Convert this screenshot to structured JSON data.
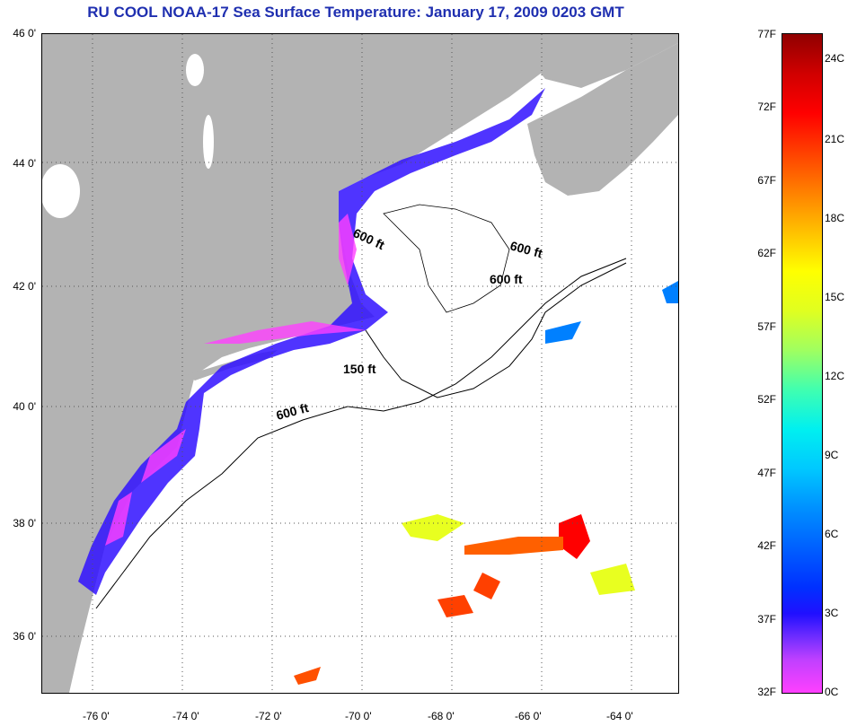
{
  "title": "RU COOL  NOAA-17  Sea Surface Temperature:  January 17, 2009 0203 GMT",
  "lat_labels": [
    "46 0'",
    "44 0'",
    "42 0'",
    "40 0'",
    "38 0'",
    "36 0'"
  ],
  "lon_labels": [
    "-76 0'",
    "-74 0'",
    "-72 0'",
    "-70 0'",
    "-68 0'",
    "-66 0'",
    "-64 0'"
  ],
  "contours": [
    "600 ft",
    "600 ft",
    "600 ft",
    "150 ft",
    "600 ft"
  ],
  "colorbar": {
    "fahrenheit": [
      "77F",
      "72F",
      "67F",
      "62F",
      "57F",
      "52F",
      "47F",
      "42F",
      "37F",
      "32F"
    ],
    "celsius": [
      "24C",
      "21C",
      "18C",
      "15C",
      "12C",
      "9C",
      "6C",
      "3C",
      "0C"
    ]
  },
  "colors": {
    "land": "#b3b3b3",
    "title": "#1f2fb0",
    "ocean_nodata": "#ffffff"
  }
}
